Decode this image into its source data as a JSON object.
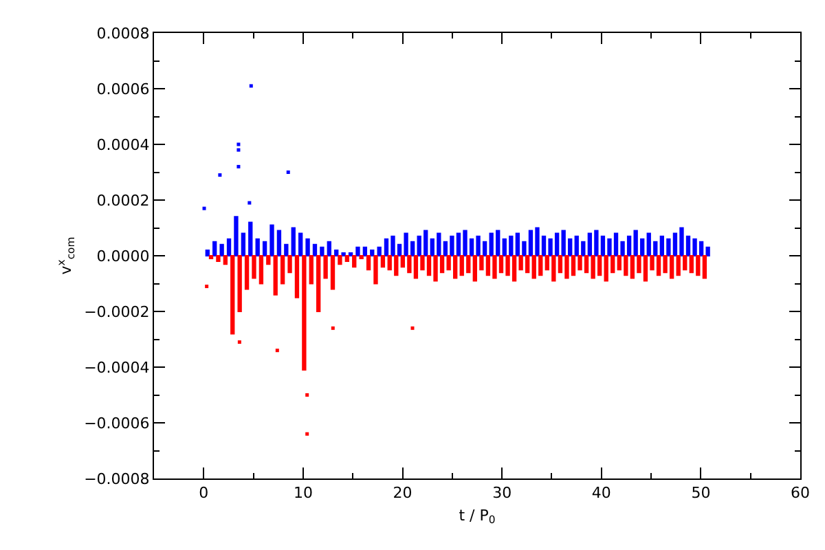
{
  "chart_data": {
    "type": "bar",
    "xlabel": "t / P$_{0}$",
    "ylabel": "v$^{x}$$_{com}$",
    "xlim": [
      -5,
      60
    ],
    "xticks": [
      0,
      10,
      20,
      30,
      40,
      50,
      60
    ],
    "ylim": [
      -0.0008,
      0.0008
    ],
    "yticks": [
      {
        "value": -0.0008,
        "label": "−0.0008"
      },
      {
        "value": -0.0006,
        "label": "−0.0006"
      },
      {
        "value": -0.0004,
        "label": "−0.0004"
      },
      {
        "value": -0.0002,
        "label": "−0.0002"
      },
      {
        "value": 0,
        "label": "0.0000"
      },
      {
        "value": 0.0002,
        "label": "0.0002"
      },
      {
        "value": 0.0004,
        "label": "0.0004"
      },
      {
        "value": 0.0006,
        "label": "0.0006"
      },
      {
        "value": 0.0008,
        "label": "0.0008"
      }
    ],
    "grid": false,
    "series": [
      {
        "color": "#0000ff",
        "x": [
          0.38,
          1.1,
          1.82,
          2.54,
          3.26,
          3.98,
          4.7,
          5.42,
          6.14,
          6.86,
          7.58,
          8.3,
          9.02,
          9.74,
          10.46,
          11.18,
          11.9,
          12.62,
          13.34,
          14.06,
          14.78,
          15.5,
          16.22,
          16.94,
          17.66,
          18.37,
          19.03,
          19.69,
          20.35,
          21.01,
          21.67,
          22.33,
          22.99,
          23.65,
          24.31,
          24.97,
          25.63,
          26.29,
          26.95,
          27.61,
          28.27,
          28.93,
          29.59,
          30.25,
          30.91,
          31.57,
          32.23,
          32.89,
          33.55,
          34.21,
          34.87,
          35.53,
          36.19,
          36.85,
          37.51,
          38.17,
          38.83,
          39.49,
          40.15,
          40.81,
          41.47,
          42.13,
          42.79,
          43.45,
          44.11,
          44.77,
          45.43,
          46.09,
          46.75,
          47.41,
          48.07,
          48.73,
          49.39,
          50.05,
          50.71
        ],
        "values": [
          2e-05,
          5e-05,
          4e-05,
          6e-05,
          0.00014,
          8e-05,
          0.00012,
          6e-05,
          5e-05,
          0.00011,
          9e-05,
          4e-05,
          0.0001,
          8e-05,
          6e-05,
          4e-05,
          3e-05,
          5e-05,
          2e-05,
          1e-05,
          1e-05,
          3e-05,
          3e-05,
          2e-05,
          3e-05,
          6e-05,
          7e-05,
          4e-05,
          8e-05,
          5e-05,
          7e-05,
          9e-05,
          6e-05,
          8e-05,
          5e-05,
          7e-05,
          8e-05,
          9e-05,
          6e-05,
          7e-05,
          5e-05,
          8e-05,
          9e-05,
          6e-05,
          7e-05,
          8e-05,
          5e-05,
          9e-05,
          0.0001,
          7e-05,
          6e-05,
          8e-05,
          9e-05,
          6e-05,
          7e-05,
          5e-05,
          8e-05,
          9e-05,
          7e-05,
          6e-05,
          8e-05,
          5e-05,
          7e-05,
          9e-05,
          6e-05,
          8e-05,
          5e-05,
          7e-05,
          6e-05,
          8e-05,
          0.0001,
          7e-05,
          6e-05,
          5e-05,
          3e-05
        ]
      },
      {
        "color": "#ff0000",
        "x": [
          0.74,
          1.46,
          2.18,
          2.9,
          3.62,
          4.34,
          5.06,
          5.78,
          6.5,
          7.22,
          7.94,
          8.66,
          9.38,
          10.1,
          10.82,
          11.54,
          12.26,
          12.98,
          13.7,
          14.42,
          15.14,
          15.86,
          16.58,
          17.3,
          18.02,
          18.7,
          19.36,
          20.02,
          20.68,
          21.34,
          22.0,
          22.66,
          23.32,
          23.98,
          24.64,
          25.3,
          25.96,
          26.62,
          27.28,
          27.94,
          28.6,
          29.26,
          29.92,
          30.58,
          31.24,
          31.9,
          32.56,
          33.22,
          33.88,
          34.54,
          35.2,
          35.86,
          36.52,
          37.18,
          37.84,
          38.5,
          39.16,
          39.82,
          40.48,
          41.14,
          41.8,
          42.46,
          43.12,
          43.78,
          44.44,
          45.1,
          45.76,
          46.42,
          47.08,
          47.74,
          48.4,
          49.06,
          49.72,
          50.38
        ],
        "values": [
          -1e-05,
          -2e-05,
          -3e-05,
          -0.00028,
          -0.0002,
          -0.00012,
          -8e-05,
          -0.0001,
          -3e-05,
          -0.00014,
          -0.0001,
          -6e-05,
          -0.00015,
          -0.00041,
          -0.0001,
          -0.0002,
          -8e-05,
          -0.00012,
          -3e-05,
          -2e-05,
          -4e-05,
          -1e-05,
          -5e-05,
          -0.0001,
          -4e-05,
          -5e-05,
          -7e-05,
          -4e-05,
          -6e-05,
          -8e-05,
          -5e-05,
          -7e-05,
          -9e-05,
          -6e-05,
          -5e-05,
          -8e-05,
          -7e-05,
          -6e-05,
          -9e-05,
          -5e-05,
          -7e-05,
          -8e-05,
          -6e-05,
          -7e-05,
          -9e-05,
          -5e-05,
          -6e-05,
          -8e-05,
          -7e-05,
          -5e-05,
          -9e-05,
          -6e-05,
          -8e-05,
          -7e-05,
          -5e-05,
          -6e-05,
          -8e-05,
          -7e-05,
          -9e-05,
          -6e-05,
          -5e-05,
          -7e-05,
          -8e-05,
          -6e-05,
          -9e-05,
          -5e-05,
          -7e-05,
          -6e-05,
          -8e-05,
          -7e-05,
          -5e-05,
          -6e-05,
          -7e-05,
          -8e-05
        ]
      },
      {
        "type": "scatter",
        "color": "#0000ff",
        "marker": "square",
        "x": [
          4.77,
          3.5,
          3.5,
          3.5,
          1.63,
          8.5,
          0.05,
          4.6
        ],
        "values": [
          0.00061,
          0.0004,
          0.00038,
          0.00032,
          0.00029,
          0.0003,
          0.00017,
          0.00019
        ]
      },
      {
        "type": "scatter",
        "color": "#ff0000",
        "marker": "square",
        "x": [
          10.4,
          10.4,
          7.4,
          3.6,
          21,
          13,
          0.3
        ],
        "values": [
          -0.00064,
          -0.0005,
          -0.00034,
          -0.00031,
          -0.00026,
          -0.00026,
          -0.00011
        ]
      }
    ]
  }
}
